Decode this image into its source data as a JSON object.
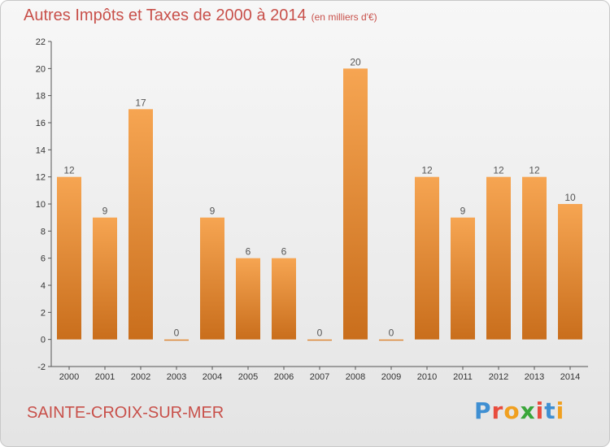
{
  "header": {
    "title": "Autres Impôts et Taxes de 2000 à 2014",
    "unit": "(en milliers d'€)"
  },
  "footer": {
    "city": "SAINTE-CROIX-SUR-MER",
    "brand_letters": [
      "P",
      "r",
      "o",
      "x",
      "i",
      "t",
      "i"
    ],
    "brand_colors": [
      "#3f8fd2",
      "#e84c3d",
      "#f0a020",
      "#3aa63a",
      "#e84c3d",
      "#3f8fd2",
      "#f0a020"
    ]
  },
  "colors": {
    "title": "#c8504a",
    "bar_light": "#f6a552",
    "bar_dark": "#c96e1c",
    "axis": "#555555"
  },
  "chart_data": {
    "type": "bar",
    "categories": [
      "2000",
      "2001",
      "2002",
      "2003",
      "2004",
      "2005",
      "2006",
      "2007",
      "2008",
      "2009",
      "2010",
      "2011",
      "2012",
      "2013",
      "2014"
    ],
    "values": [
      12,
      9,
      17,
      0,
      9,
      6,
      6,
      0,
      20,
      0,
      12,
      9,
      12,
      12,
      10
    ],
    "value_labels": [
      "12",
      "9",
      "17",
      "0",
      "9",
      "6",
      "6",
      "0",
      "20",
      "0",
      "12",
      "9",
      "12",
      "12",
      "10"
    ],
    "y_ticks": [
      -2,
      0,
      2,
      4,
      6,
      8,
      10,
      12,
      14,
      16,
      18,
      20,
      22
    ],
    "ylim": [
      -2,
      22
    ],
    "grid": false
  }
}
